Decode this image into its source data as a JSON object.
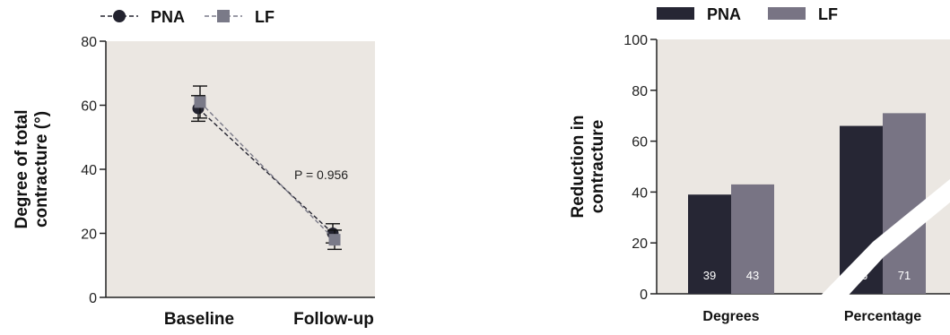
{
  "chart_data": [
    {
      "type": "line",
      "legend_placement": "top-left",
      "categories": [
        "Baseline",
        "Follow-up"
      ],
      "ylabel": [
        "Degree of total",
        "contracture (°)"
      ],
      "ylim": [
        0,
        80
      ],
      "yticks": [
        0,
        20,
        40,
        60,
        80
      ],
      "grid": false,
      "annotation": "P = 0.956",
      "series": [
        {
          "name": "PNA",
          "values": [
            59,
            20
          ],
          "error": [
            4,
            3
          ],
          "color": "#23232f",
          "marker": "circle"
        },
        {
          "name": "LF",
          "values": [
            61,
            18
          ],
          "error": [
            5,
            3
          ],
          "color": "#7a7a88",
          "marker": "square"
        }
      ],
      "colors": {
        "background": "#ebe7e2",
        "axis": "#222222"
      }
    },
    {
      "type": "bar",
      "legend_placement": "top-left",
      "categories": [
        "Degrees",
        "Percentage"
      ],
      "ylabel": [
        "Reduction in",
        "contracture"
      ],
      "ylim": [
        0,
        100
      ],
      "yticks": [
        0,
        20,
        40,
        60,
        80,
        100
      ],
      "grid": false,
      "series": [
        {
          "name": "PNA",
          "values": [
            39,
            66
          ],
          "labels": [
            "39",
            "66"
          ],
          "color": "#262634"
        },
        {
          "name": "LF",
          "values": [
            43,
            71
          ],
          "labels": [
            "43",
            "71"
          ],
          "color": "#787484"
        }
      ],
      "colors": {
        "background": "#ebe7e2",
        "axis": "#222222"
      }
    }
  ]
}
